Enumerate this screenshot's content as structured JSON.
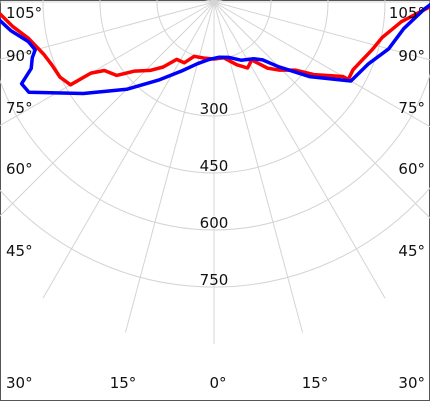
{
  "chart_data": {
    "type": "polar-line",
    "title": "",
    "angle_labels": {
      "left": [
        "105°",
        "90°",
        "75°",
        "60°",
        "45°",
        "30°",
        "15°"
      ],
      "right": [
        "105°",
        "90°",
        "75°",
        "60°",
        "45°",
        "30°",
        "15°"
      ],
      "bottom": "0°"
    },
    "radial_ticks": [
      150,
      300,
      450,
      600,
      750
    ],
    "radial_tick_labels": [
      "300",
      "450",
      "600",
      "750"
    ],
    "radial_max": 900,
    "angle_grid_step_deg": 15,
    "grid": true,
    "colors": {
      "grid": "#d4d4d4",
      "series_c0": "#ff0000",
      "series_c90": "#0000ff"
    },
    "series": [
      {
        "color": "#ff0000",
        "points": [
          {
            "angle": -92,
            "r": 620
          },
          {
            "angle": -88,
            "r": 575
          },
          {
            "angle": -83,
            "r": 533
          },
          {
            "angle": -79,
            "r": 498
          },
          {
            "angle": -73,
            "r": 469
          },
          {
            "angle": -69,
            "r": 458
          },
          {
            "angle": -64,
            "r": 451
          },
          {
            "angle": -60,
            "r": 436
          },
          {
            "angle": -60,
            "r": 374
          },
          {
            "angle": -58,
            "r": 340
          },
          {
            "angle": -53,
            "r": 321
          },
          {
            "angle": -49,
            "r": 277
          },
          {
            "angle": -43,
            "r": 246
          },
          {
            "angle": -38,
            "r": 217
          },
          {
            "angle": -33,
            "r": 180
          },
          {
            "angle": -26,
            "r": 178
          },
          {
            "angle": -20,
            "r": 152
          },
          {
            "angle": -10,
            "r": 150
          },
          {
            "angle": 0,
            "r": 150
          },
          {
            "angle": 10,
            "r": 149
          },
          {
            "angle": 20,
            "r": 176
          },
          {
            "angle": 27,
            "r": 195
          },
          {
            "angle": 33,
            "r": 182
          },
          {
            "angle": 39,
            "r": 224
          },
          {
            "angle": 44,
            "r": 249
          },
          {
            "angle": 50,
            "r": 279
          },
          {
            "angle": 54,
            "r": 325
          },
          {
            "angle": 60,
            "r": 392
          },
          {
            "angle": 60,
            "r": 408
          },
          {
            "angle": 64,
            "r": 407
          },
          {
            "angle": 68,
            "r": 417
          },
          {
            "angle": 73,
            "r": 434
          },
          {
            "angle": 78,
            "r": 452
          },
          {
            "angle": 84,
            "r": 496
          },
          {
            "angle": 88,
            "r": 555
          },
          {
            "angle": 92,
            "r": 640
          }
        ]
      },
      {
        "color": "#0000ff",
        "points": [
          {
            "angle": -92,
            "r": 625
          },
          {
            "angle": -88,
            "r": 588
          },
          {
            "angle": -85,
            "r": 565
          },
          {
            "angle": -82,
            "r": 540
          },
          {
            "angle": -78,
            "r": 500
          },
          {
            "angle": -75,
            "r": 487
          },
          {
            "angle": -73,
            "r": 500
          },
          {
            "angle": -70,
            "r": 512
          },
          {
            "angle": -67,
            "r": 550
          },
          {
            "angle": -64,
            "r": 542
          },
          {
            "angle": -55,
            "r": 420
          },
          {
            "angle": -45,
            "r": 325
          },
          {
            "angle": -35,
            "r": 250
          },
          {
            "angle": -25,
            "r": 200
          },
          {
            "angle": -15,
            "r": 168
          },
          {
            "angle": -5,
            "r": 152
          },
          {
            "angle": 5,
            "r": 146
          },
          {
            "angle": 15,
            "r": 151
          },
          {
            "angle": 25,
            "r": 169
          },
          {
            "angle": 35,
            "r": 182
          },
          {
            "angle": 40,
            "r": 199
          },
          {
            "angle": 45,
            "r": 241
          },
          {
            "angle": 52,
            "r": 319
          },
          {
            "angle": 60,
            "r": 416
          },
          {
            "angle": 68,
            "r": 437
          },
          {
            "angle": 75,
            "r": 476
          },
          {
            "angle": 82,
            "r": 504
          },
          {
            "angle": 88,
            "r": 553
          },
          {
            "angle": 92,
            "r": 609
          }
        ]
      }
    ]
  }
}
